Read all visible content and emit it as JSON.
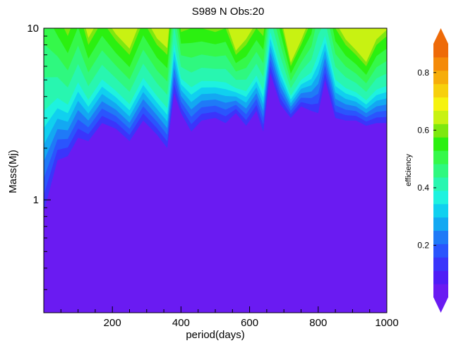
{
  "chart_data": {
    "type": "heatmap",
    "title": "S989 N Obs:20",
    "xlabel": "period(days)",
    "ylabel": "Mass(Mj)",
    "colorbar_label": "efficiency",
    "xlim": [
      0,
      1000
    ],
    "ylim": [
      0.22,
      10
    ],
    "y_scale": "log",
    "x_ticks": [
      200,
      400,
      600,
      800,
      1000
    ],
    "x_tick_labels": [
      "200",
      "400",
      "600",
      "800",
      "1000"
    ],
    "y_ticks": [
      1,
      10
    ],
    "y_tick_labels": [
      "1",
      "10"
    ],
    "colorbar_range": [
      0.02,
      0.9
    ],
    "colorbar_ticks": [
      0.2,
      0.4,
      0.6,
      0.8
    ],
    "colorbar_tick_labels": [
      "0.2",
      "0.4",
      "0.6",
      "0.8"
    ],
    "colorbar_extend": "both",
    "colormap": [
      "#6a1bf2",
      "#4f1df6",
      "#3a35fb",
      "#2a55fd",
      "#1f7af7",
      "#13a8f2",
      "#10d0ef",
      "#1ef2df",
      "#28f6b0",
      "#2ff87f",
      "#35f84a",
      "#2bf010",
      "#7de80f",
      "#c8f212",
      "#f6f30f",
      "#f7d00d",
      "#f6ad0b",
      "#f48a09",
      "#ee6a08"
    ],
    "efficiency_profile": {
      "x": [
        0,
        40,
        70,
        100,
        130,
        170,
        210,
        250,
        290,
        330,
        360,
        380,
        400,
        430,
        460,
        500,
        530,
        560,
        590,
        620,
        640,
        660,
        690,
        720,
        750,
        780,
        800,
        820,
        850,
        880,
        910,
        940,
        970,
        1000
      ],
      "mass_at_efficiency_0_1": [
        0.85,
        1.7,
        1.8,
        2.3,
        2.2,
        2.8,
        2.6,
        2.2,
        2.9,
        2.4,
        2.0,
        4.2,
        3.2,
        2.5,
        2.9,
        3.0,
        2.8,
        3.2,
        2.7,
        3.3,
        2.5,
        5.5,
        3.6,
        3.0,
        3.5,
        3.3,
        3.2,
        5.0,
        3.0,
        2.9,
        2.9,
        2.7,
        2.8,
        2.8
      ],
      "mass_at_efficiency_0_8": [
        20,
        12,
        9,
        13,
        8,
        11,
        8.5,
        7,
        11,
        8,
        7,
        20,
        9.5,
        10,
        10,
        9.5,
        10,
        7,
        8,
        10,
        9,
        20,
        11,
        6,
        8,
        11,
        20,
        20,
        10,
        8,
        7,
        6,
        8,
        9
      ]
    }
  }
}
